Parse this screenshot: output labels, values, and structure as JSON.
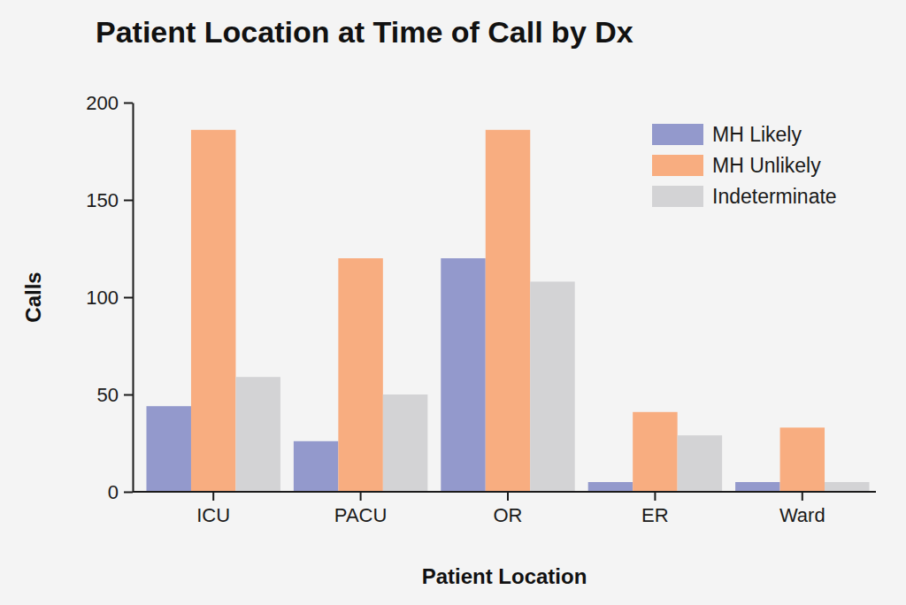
{
  "chart_data": {
    "type": "bar",
    "title": "Patient Location at Time of Call by Dx",
    "x_label": "Patient Location",
    "y_label": "Calls",
    "categories": [
      "ICU",
      "PACU",
      "OR",
      "ER",
      "Ward"
    ],
    "series": [
      {
        "name": "MH Likely",
        "color": "#9399cc",
        "values": [
          44,
          26,
          120,
          5,
          5
        ]
      },
      {
        "name": "MH Unlikely",
        "color": "#f8ad80",
        "values": [
          186,
          120,
          186,
          41,
          33
        ]
      },
      {
        "name": "Indeterminate",
        "color": "#d3d3d5",
        "values": [
          59,
          50,
          108,
          29,
          5
        ]
      }
    ],
    "ylim": [
      0,
      200
    ],
    "yticks": [
      0,
      50,
      100,
      150,
      200
    ],
    "grid": false,
    "legend": "upper right"
  }
}
